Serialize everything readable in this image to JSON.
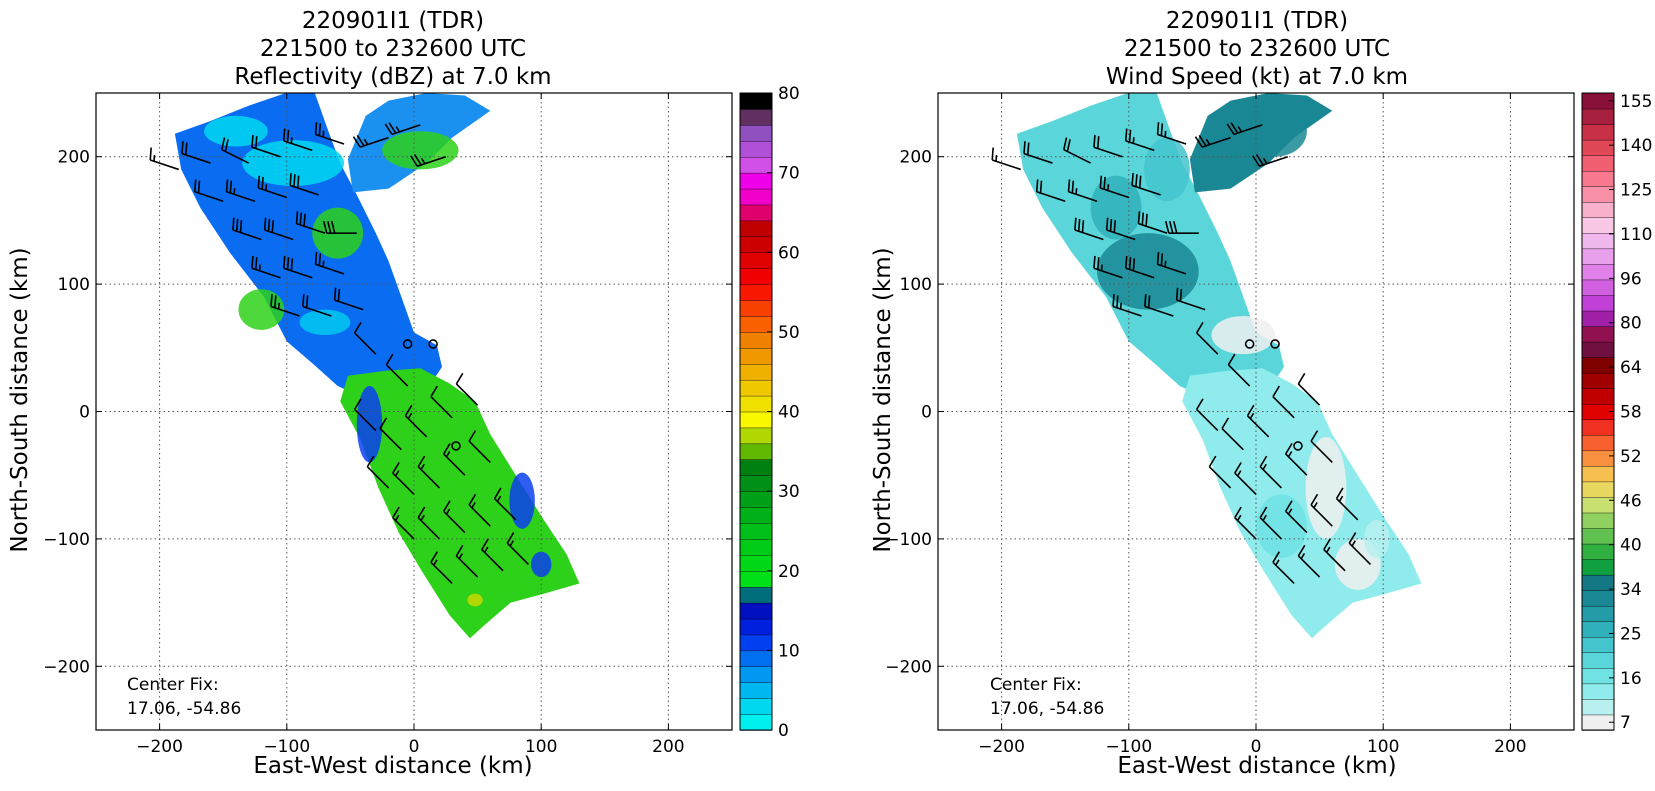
{
  "colors": {
    "ocean": "#ffffff",
    "grid": "#555555",
    "barb": "#000000"
  },
  "chart_data": [
    {
      "type": "heatmap",
      "title_lines": [
        "220901I1 (TDR)",
        "221500 to 232600 UTC",
        "Reflectivity (dBZ) at 7.0 km"
      ],
      "xlabel": "East-West distance (km)",
      "ylabel": "North-South distance (km)",
      "xlim": [
        -250,
        250
      ],
      "ylim": [
        -250,
        250
      ],
      "xticks": [
        -200,
        -100,
        0,
        100,
        200
      ],
      "yticks": [
        -200,
        -100,
        0,
        100,
        200
      ],
      "xtick_labels": [
        "−200",
        "−100",
        "0",
        "100",
        "200"
      ],
      "ytick_labels": [
        "−200",
        "−100",
        "0",
        "100",
        "200"
      ],
      "grid": true,
      "annotation": [
        "Center Fix:",
        "17.06, -54.86"
      ],
      "colorbar": {
        "min": 0,
        "max": 80,
        "ticks": [
          "0",
          "10",
          "20",
          "30",
          "40",
          "50",
          "60",
          "70",
          "80"
        ],
        "colors": [
          "#00f0f0",
          "#00d8f0",
          "#00b8f0",
          "#0098f0",
          "#0070f0",
          "#0040f0",
          "#0020e0",
          "#0010c0",
          "#006d7a",
          "#00e018",
          "#00d818",
          "#00cc18",
          "#00bf18",
          "#00b018",
          "#00a018",
          "#009018",
          "#008010",
          "#60b800",
          "#b0d800",
          "#f8f800",
          "#f0e000",
          "#f0c800",
          "#f0b000",
          "#f09800",
          "#f08000",
          "#f86000",
          "#f84000",
          "#f81800",
          "#f00000",
          "#e00000",
          "#cc0000",
          "#c00000",
          "#e0006c",
          "#f000c8",
          "#f000e8",
          "#d050e8",
          "#b050d8",
          "#9050c0",
          "#603060",
          "#000000"
        ]
      },
      "storm_regions": [
        {
          "name": "north-cell",
          "polygon": [
            [
              -188,
              218
            ],
            [
              -160,
              228
            ],
            [
              -130,
              240
            ],
            [
              -95,
              252
            ],
            [
              -78,
              250
            ],
            [
              -68,
              222
            ],
            [
              -58,
              195
            ],
            [
              -45,
              170
            ],
            [
              -30,
              140
            ],
            [
              -20,
              118
            ],
            [
              -10,
              90
            ],
            [
              0,
              62
            ],
            [
              18,
              52
            ],
            [
              22,
              35
            ],
            [
              12,
              20
            ],
            [
              -12,
              22
            ],
            [
              -38,
              10
            ],
            [
              -60,
              20
            ],
            [
              -80,
              38
            ],
            [
              -100,
              55
            ],
            [
              -118,
              90
            ],
            [
              -145,
              125
            ],
            [
              -168,
              160
            ],
            [
              -183,
              190
            ]
          ]
        },
        {
          "name": "northeast-cell",
          "polygon": [
            [
              -38,
              232
            ],
            [
              -20,
              244
            ],
            [
              10,
              250
            ],
            [
              40,
              248
            ],
            [
              60,
              236
            ],
            [
              30,
              215
            ],
            [
              10,
              195
            ],
            [
              -20,
              175
            ],
            [
              -48,
              172
            ],
            [
              -52,
              198
            ]
          ]
        },
        {
          "name": "south-band",
          "polygon": [
            [
              -52,
              28
            ],
            [
              -22,
              32
            ],
            [
              5,
              34
            ],
            [
              28,
              22
            ],
            [
              48,
              8
            ],
            [
              60,
              -18
            ],
            [
              80,
              -50
            ],
            [
              102,
              -85
            ],
            [
              120,
              -112
            ],
            [
              130,
              -135
            ],
            [
              102,
              -143
            ],
            [
              76,
              -150
            ],
            [
              55,
              -168
            ],
            [
              44,
              -178
            ],
            [
              28,
              -160
            ],
            [
              6,
              -125
            ],
            [
              -12,
              -95
            ],
            [
              -28,
              -60
            ],
            [
              -42,
              -22
            ],
            [
              -58,
              8
            ]
          ]
        }
      ],
      "region_colors": {
        "north-cell": "#0a6cf0",
        "northeast-cell": "#1a90f0",
        "south-band": "#2ed11a"
      },
      "patches": [
        {
          "cx": -95,
          "cy": 195,
          "rx": 40,
          "ry": 18,
          "color": "#00d8f0"
        },
        {
          "cx": -60,
          "cy": 140,
          "rx": 20,
          "ry": 20,
          "color": "#2ed11a"
        },
        {
          "cx": -120,
          "cy": 80,
          "rx": 18,
          "ry": 16,
          "color": "#2ed11a"
        },
        {
          "cx": -70,
          "cy": 70,
          "rx": 20,
          "ry": 10,
          "color": "#00c8f0"
        },
        {
          "cx": -140,
          "cy": 220,
          "rx": 25,
          "ry": 12,
          "color": "#00d8f0"
        },
        {
          "cx": 5,
          "cy": 205,
          "rx": 30,
          "ry": 15,
          "color": "#2ed11a"
        },
        {
          "cx": 85,
          "cy": -70,
          "rx": 10,
          "ry": 22,
          "color": "#0a40f0"
        },
        {
          "cx": 100,
          "cy": -120,
          "rx": 8,
          "ry": 10,
          "color": "#0a40f0"
        },
        {
          "cx": -35,
          "cy": -10,
          "rx": 10,
          "ry": 30,
          "color": "#0a40f0"
        },
        {
          "cx": 48,
          "cy": -148,
          "rx": 6,
          "ry": 5,
          "color": "#c8d800"
        }
      ],
      "center_fix_km": [
        33,
        -27
      ]
    },
    {
      "type": "heatmap",
      "title_lines": [
        "220901I1 (TDR)",
        "221500 to 232600 UTC",
        "Wind Speed (kt) at 7.0 km"
      ],
      "xlabel": "East-West distance (km)",
      "ylabel": "North-South distance (km)",
      "xlim": [
        -250,
        250
      ],
      "ylim": [
        -250,
        250
      ],
      "xticks": [
        -200,
        -100,
        0,
        100,
        200
      ],
      "yticks": [
        -200,
        -100,
        0,
        100,
        200
      ],
      "xtick_labels": [
        "−200",
        "−100",
        "0",
        "100",
        "200"
      ],
      "ytick_labels": [
        "−200",
        "−100",
        "0",
        "100",
        "200"
      ],
      "grid": true,
      "annotation": [
        "Center Fix:",
        "17.06, -54.86"
      ],
      "colorbar": {
        "min": 0,
        "max": 160,
        "ticks": [
          "7",
          "16",
          "25",
          "34",
          "40",
          "46",
          "52",
          "58",
          "64",
          "80",
          "96",
          "110",
          "125",
          "140",
          "155"
        ],
        "colors": [
          "#f0f0f0",
          "#b8f0f0",
          "#90ecec",
          "#70e2e4",
          "#5ad6da",
          "#44c4cc",
          "#30b0ba",
          "#249ca8",
          "#1a8894",
          "#147884",
          "#10a040",
          "#30b040",
          "#60c050",
          "#90d060",
          "#c8e070",
          "#e8d860",
          "#f8c050",
          "#f89040",
          "#f86030",
          "#f03020",
          "#e00000",
          "#c00000",
          "#a00000",
          "#800000",
          "#701040",
          "#901050",
          "#a020a8",
          "#c040d8",
          "#d060e0",
          "#e080e8",
          "#e8a0ec",
          "#f0b8ec",
          "#f8c8e4",
          "#f8b0cc",
          "#f890a8",
          "#f87890",
          "#f06070",
          "#e04858",
          "#c83048",
          "#a82040",
          "#881038"
        ]
      },
      "storm_regions": [
        {
          "name": "north-cell",
          "polygon": [
            [
              -188,
              218
            ],
            [
              -160,
              228
            ],
            [
              -130,
              240
            ],
            [
              -95,
              252
            ],
            [
              -78,
              250
            ],
            [
              -68,
              222
            ],
            [
              -58,
              195
            ],
            [
              -45,
              170
            ],
            [
              -30,
              140
            ],
            [
              -20,
              118
            ],
            [
              -10,
              90
            ],
            [
              0,
              62
            ],
            [
              18,
              52
            ],
            [
              22,
              35
            ],
            [
              12,
              20
            ],
            [
              -12,
              22
            ],
            [
              -38,
              10
            ],
            [
              -60,
              20
            ],
            [
              -80,
              38
            ],
            [
              -100,
              55
            ],
            [
              -118,
              90
            ],
            [
              -145,
              125
            ],
            [
              -168,
              160
            ],
            [
              -183,
              190
            ]
          ]
        },
        {
          "name": "northeast-cell",
          "polygon": [
            [
              -38,
              232
            ],
            [
              -20,
              244
            ],
            [
              10,
              250
            ],
            [
              40,
              248
            ],
            [
              60,
              236
            ],
            [
              30,
              215
            ],
            [
              10,
              195
            ],
            [
              -20,
              175
            ],
            [
              -48,
              172
            ],
            [
              -52,
              198
            ]
          ]
        },
        {
          "name": "south-band",
          "polygon": [
            [
              -52,
              28
            ],
            [
              -22,
              32
            ],
            [
              5,
              34
            ],
            [
              28,
              22
            ],
            [
              48,
              8
            ],
            [
              60,
              -18
            ],
            [
              80,
              -50
            ],
            [
              102,
              -85
            ],
            [
              120,
              -112
            ],
            [
              130,
              -135
            ],
            [
              102,
              -143
            ],
            [
              76,
              -150
            ],
            [
              55,
              -168
            ],
            [
              44,
              -178
            ],
            [
              28,
              -160
            ],
            [
              6,
              -125
            ],
            [
              -12,
              -95
            ],
            [
              -28,
              -60
            ],
            [
              -42,
              -22
            ],
            [
              -58,
              8
            ]
          ]
        }
      ],
      "region_colors": {
        "north-cell": "#5ad6da",
        "northeast-cell": "#1a8894",
        "south-band": "#90ecec"
      },
      "patches": [
        {
          "cx": -85,
          "cy": 110,
          "rx": 40,
          "ry": 30,
          "color": "#1a8894"
        },
        {
          "cx": -110,
          "cy": 160,
          "rx": 20,
          "ry": 25,
          "color": "#30b0ba"
        },
        {
          "cx": -70,
          "cy": 190,
          "rx": 18,
          "ry": 25,
          "color": "#44c4cc"
        },
        {
          "cx": -10,
          "cy": 60,
          "rx": 25,
          "ry": 15,
          "color": "#f0f0f0"
        },
        {
          "cx": 55,
          "cy": -60,
          "rx": 16,
          "ry": 40,
          "color": "#f0f0f0"
        },
        {
          "cx": 80,
          "cy": -120,
          "rx": 18,
          "ry": 20,
          "color": "#f0f0f0"
        },
        {
          "cx": 20,
          "cy": -90,
          "rx": 20,
          "ry": 25,
          "color": "#70e2e4"
        },
        {
          "cx": 15,
          "cy": 220,
          "rx": 25,
          "ry": 20,
          "color": "#1a8894"
        },
        {
          "cx": 95,
          "cy": -100,
          "rx": 10,
          "ry": 15,
          "color": "#b8f0f0"
        }
      ],
      "center_fix_km": [
        33,
        -27
      ]
    }
  ],
  "wind_barbs": [
    {
      "x": -185,
      "y": 190,
      "u": 3,
      "v": -1,
      "kt": 15
    },
    {
      "x": -160,
      "y": 195,
      "u": 3,
      "v": -1,
      "kt": 20
    },
    {
      "x": -130,
      "y": 195,
      "u": 2,
      "v": -1,
      "kt": 20
    },
    {
      "x": -105,
      "y": 200,
      "u": 3,
      "v": -1,
      "kt": 20
    },
    {
      "x": -80,
      "y": 205,
      "u": 3,
      "v": -1,
      "kt": 25
    },
    {
      "x": -55,
      "y": 210,
      "u": 3,
      "v": -1,
      "kt": 25
    },
    {
      "x": -150,
      "y": 165,
      "u": 3,
      "v": -1,
      "kt": 20
    },
    {
      "x": -125,
      "y": 165,
      "u": 3,
      "v": -1,
      "kt": 25
    },
    {
      "x": -100,
      "y": 168,
      "u": 3,
      "v": -1,
      "kt": 25
    },
    {
      "x": -75,
      "y": 170,
      "u": 3,
      "v": -1,
      "kt": 30
    },
    {
      "x": -120,
      "y": 135,
      "u": 3,
      "v": -1,
      "kt": 30
    },
    {
      "x": -95,
      "y": 135,
      "u": 3,
      "v": -1,
      "kt": 30
    },
    {
      "x": -70,
      "y": 140,
      "u": 3,
      "v": -1,
      "kt": 30
    },
    {
      "x": -45,
      "y": 140,
      "u": 3,
      "v": 0,
      "kt": 30
    },
    {
      "x": -105,
      "y": 105,
      "u": 3,
      "v": -1,
      "kt": 25
    },
    {
      "x": -80,
      "y": 105,
      "u": 3,
      "v": -1,
      "kt": 30
    },
    {
      "x": -55,
      "y": 108,
      "u": 3,
      "v": -1,
      "kt": 25
    },
    {
      "x": -90,
      "y": 75,
      "u": 3,
      "v": -1,
      "kt": 25
    },
    {
      "x": -65,
      "y": 75,
      "u": 3,
      "v": -1,
      "kt": 20
    },
    {
      "x": -40,
      "y": 80,
      "u": 3,
      "v": -1,
      "kt": 20
    },
    {
      "x": -20,
      "y": 215,
      "u": 3,
      "v": 1,
      "kt": 25
    },
    {
      "x": 5,
      "y": 225,
      "u": 3,
      "v": 1,
      "kt": 25
    },
    {
      "x": 25,
      "y": 200,
      "u": 3,
      "v": 1,
      "kt": 25
    },
    {
      "x": -30,
      "y": -15,
      "u": 1,
      "v": -1,
      "kt": 10
    },
    {
      "x": -10,
      "y": -30,
      "u": 1,
      "v": -1,
      "kt": 10
    },
    {
      "x": 10,
      "y": -20,
      "u": 1,
      "v": -1,
      "kt": 15
    },
    {
      "x": 30,
      "y": -5,
      "u": 1,
      "v": -1,
      "kt": 10
    },
    {
      "x": 50,
      "y": 5,
      "u": 1,
      "v": -1,
      "kt": 10
    },
    {
      "x": -20,
      "y": -60,
      "u": 1,
      "v": -1,
      "kt": 10
    },
    {
      "x": 0,
      "y": -65,
      "u": 1,
      "v": -1,
      "kt": 15
    },
    {
      "x": 20,
      "y": -60,
      "u": 1,
      "v": -1,
      "kt": 15
    },
    {
      "x": 40,
      "y": -50,
      "u": 1,
      "v": -1,
      "kt": 15
    },
    {
      "x": 60,
      "y": -40,
      "u": 1,
      "v": -1,
      "kt": 10
    },
    {
      "x": 0,
      "y": -100,
      "u": 1,
      "v": -1,
      "kt": 15
    },
    {
      "x": 20,
      "y": -100,
      "u": 1,
      "v": -1,
      "kt": 15
    },
    {
      "x": 40,
      "y": -95,
      "u": 1,
      "v": -1,
      "kt": 15
    },
    {
      "x": 60,
      "y": -90,
      "u": 1,
      "v": -1,
      "kt": 15
    },
    {
      "x": 80,
      "y": -85,
      "u": 1,
      "v": -1,
      "kt": 15
    },
    {
      "x": 30,
      "y": -135,
      "u": 1,
      "v": -1,
      "kt": 15
    },
    {
      "x": 50,
      "y": -130,
      "u": 1,
      "v": -1,
      "kt": 15
    },
    {
      "x": 70,
      "y": -125,
      "u": 1,
      "v": -1,
      "kt": 15
    },
    {
      "x": 90,
      "y": -120,
      "u": 1,
      "v": -1,
      "kt": 15
    },
    {
      "x": -30,
      "y": 45,
      "u": 1,
      "v": -1,
      "kt": 10
    },
    {
      "x": -5,
      "y": 20,
      "u": 1,
      "v": -1,
      "kt": 10
    }
  ],
  "markers": [
    {
      "name": "circle-a",
      "x": -5,
      "y": 53
    },
    {
      "name": "circle-b",
      "x": 15,
      "y": 53
    },
    {
      "name": "circle-c",
      "x": 33,
      "y": -27
    }
  ]
}
